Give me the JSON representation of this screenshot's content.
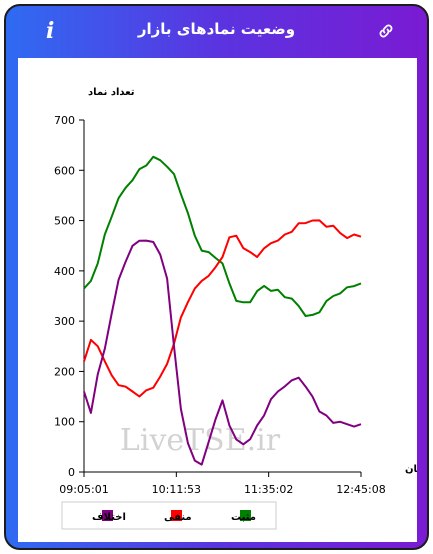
{
  "header": {
    "title": "وضعیت نمادهای بازار",
    "info_icon": "i",
    "link_icon": "link-icon"
  },
  "watermark": "LiveTSE.ir",
  "chart_data": {
    "type": "line",
    "ylabel": "تعداد نماد",
    "xlabel": "زمان",
    "ylim": [
      0,
      700
    ],
    "yticks": [
      0,
      100,
      200,
      300,
      400,
      500,
      600,
      700
    ],
    "xticks": [
      "09:05:01",
      "10:11:53",
      "11:35:02",
      "12:45:08"
    ],
    "x_points": 41,
    "grid": false,
    "legend_position": "bottom",
    "series": [
      {
        "name": "مثبت",
        "color": "#008000",
        "values": [
          365,
          380,
          420,
          470,
          510,
          540,
          565,
          585,
          600,
          612,
          622,
          620,
          612,
          590,
          555,
          510,
          470,
          445,
          435,
          428,
          410,
          375,
          345,
          335,
          340,
          355,
          370,
          365,
          360,
          350,
          340,
          330,
          315,
          310,
          320,
          335,
          350,
          360,
          365,
          372,
          375
        ]
      },
      {
        "name": "منفی",
        "color": "#ff0000",
        "values": [
          220,
          258,
          250,
          225,
          190,
          175,
          165,
          160,
          155,
          160,
          170,
          185,
          215,
          260,
          305,
          340,
          360,
          380,
          395,
          405,
          430,
          462,
          470,
          450,
          435,
          430,
          440,
          455,
          465,
          470,
          480,
          490,
          495,
          505,
          498,
          490,
          485,
          475,
          470,
          470,
          468
        ]
      },
      {
        "name": "اختلاف",
        "color": "#800080",
        "values": [
          160,
          120,
          190,
          245,
          320,
          380,
          420,
          445,
          460,
          465,
          455,
          435,
          380,
          250,
          130,
          55,
          25,
          10,
          60,
          110,
          140,
          95,
          60,
          55,
          70,
          90,
          115,
          140,
          160,
          175,
          180,
          190,
          165,
          150,
          125,
          110,
          100,
          95,
          95,
          95,
          95
        ]
      }
    ]
  }
}
